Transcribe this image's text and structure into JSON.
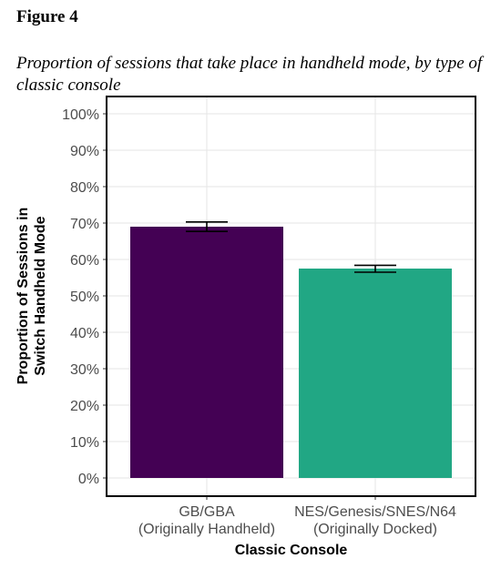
{
  "figure": {
    "label": "Figure 4",
    "caption": "Proportion of sessions that take place in handheld mode, by type of classic console"
  },
  "chart_data": {
    "type": "bar",
    "title": "",
    "categories": [
      [
        "GB/GBA",
        "(Originally Handheld)"
      ],
      [
        "NES/Genesis/SNES/N64",
        "(Originally Docked)"
      ]
    ],
    "series": [
      {
        "values": [
          0.69,
          0.575
        ],
        "error_low": [
          0.677,
          0.565
        ],
        "error_high": [
          0.703,
          0.584
        ]
      }
    ],
    "colors": [
      "#440154",
      "#21a784"
    ],
    "xlabel": "Classic Console",
    "ylabel": [
      "Proportion of Sessions in",
      "Switch Handheld Mode"
    ],
    "ylim": [
      0,
      1
    ],
    "yticks": [
      0,
      0.1,
      0.2,
      0.3,
      0.4,
      0.5,
      0.6,
      0.7,
      0.8,
      0.9,
      1.0
    ],
    "ytick_labels": [
      "0%",
      "10%",
      "20%",
      "30%",
      "40%",
      "50%",
      "60%",
      "70%",
      "80%",
      "90%",
      "100%"
    ],
    "grid": true,
    "legend": "none"
  }
}
